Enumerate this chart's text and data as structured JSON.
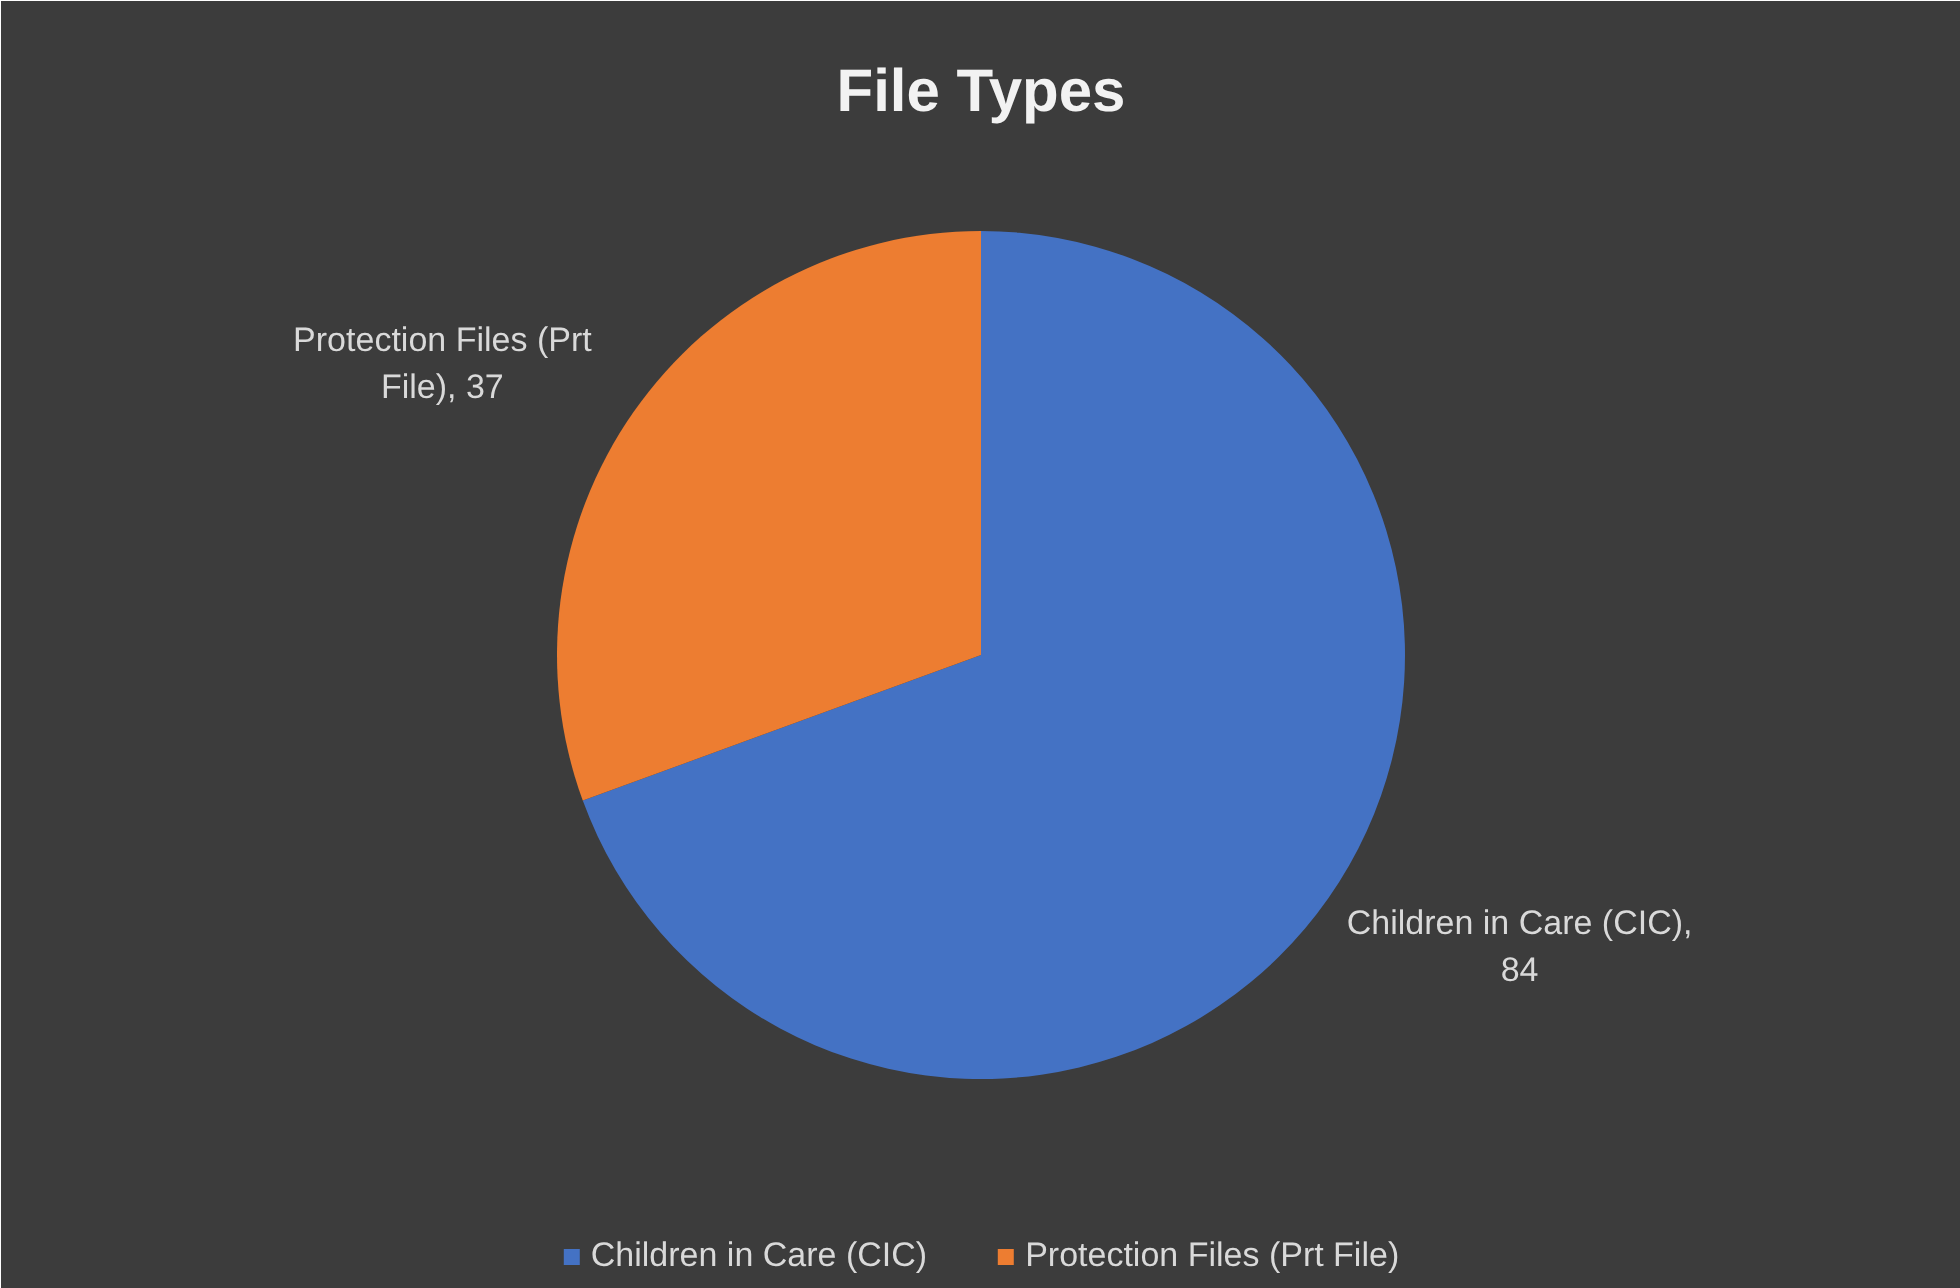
{
  "chart_data": {
    "type": "pie",
    "title": "File Types",
    "categories": [
      "Children in Care (CIC)",
      "Protection Files (Prt File)"
    ],
    "values": [
      84,
      37
    ],
    "colors": [
      "#4472c4",
      "#ed7d31"
    ],
    "value_labels": [
      "Children in Care (CIC), 84",
      "Protection Files (Prt File), 37"
    ],
    "legend": "bottom"
  }
}
